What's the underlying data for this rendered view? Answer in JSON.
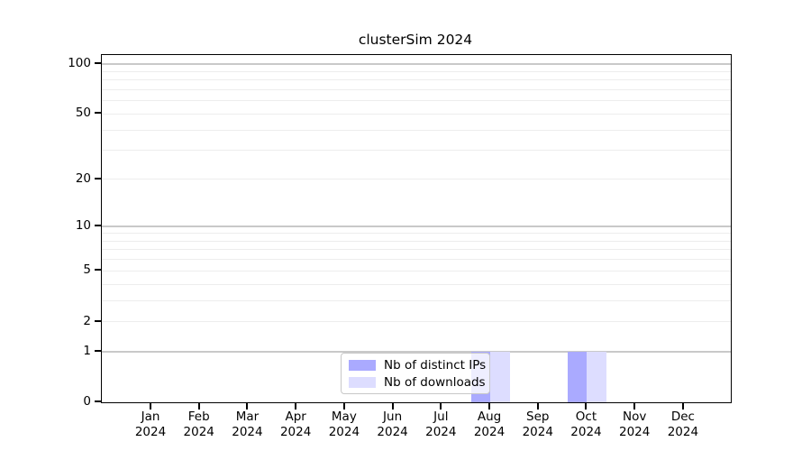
{
  "title": "clusterSim 2024",
  "colors": {
    "ips_bar": "#aaaaff",
    "downloads_bar": "#ddddff",
    "grid_major": "#c9c9c9",
    "grid_minor": "#ededed",
    "axis": "#000000",
    "legend_border": "#c8c8c8",
    "background": "#ffffff"
  },
  "legend": {
    "items": [
      {
        "label": "Nb of distinct IPs",
        "color": "#aaaaff"
      },
      {
        "label": "Nb of downloads",
        "color": "#ddddff"
      }
    ]
  },
  "chart_data": {
    "type": "bar",
    "title": "clusterSim 2024",
    "categories": [
      "Jan",
      "Feb",
      "Mar",
      "Apr",
      "May",
      "Jun",
      "Jul",
      "Aug",
      "Sep",
      "Oct",
      "Nov",
      "Dec"
    ],
    "year_label": "2024",
    "series": [
      {
        "name": "Nb of distinct IPs",
        "color": "#aaaaff",
        "values": [
          0,
          0,
          0,
          0,
          0,
          0,
          0,
          1,
          0,
          1,
          0,
          0
        ]
      },
      {
        "name": "Nb of downloads",
        "color": "#ddddff",
        "values": [
          0,
          0,
          0,
          0,
          0,
          0,
          0,
          1,
          0,
          1,
          0,
          0
        ]
      }
    ],
    "xlabel": "",
    "ylabel": "",
    "y_scale": "log1p",
    "y_ticks": [
      0,
      1,
      2,
      5,
      10,
      20,
      50,
      100
    ],
    "y_minor_gridlines": [
      2,
      3,
      4,
      5,
      6,
      7,
      8,
      9,
      20,
      30,
      40,
      50,
      60,
      70,
      80,
      90
    ],
    "y_major_gridlines": [
      1,
      10,
      100
    ],
    "ylim": [
      0,
      113
    ],
    "grid": true,
    "legend_position": "bottom-center"
  }
}
